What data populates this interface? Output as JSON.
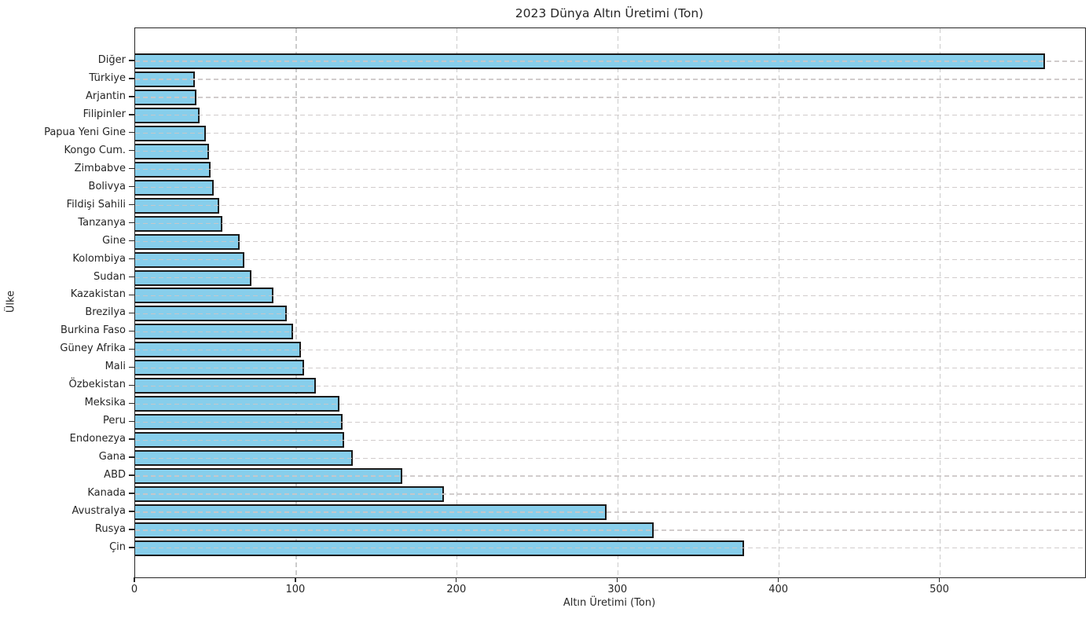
{
  "chart_data": {
    "type": "bar",
    "orientation": "horizontal",
    "title": "2023 Dünya Altın Üretimi (Ton)",
    "xlabel": "Altın Üretimi (Ton)",
    "ylabel": "Ülke",
    "categories_top_to_bottom": [
      "Diğer",
      "Türkiye",
      "Arjantin",
      "Filipinler",
      "Papua Yeni Gine",
      "Kongo Cum.",
      "Zimbabve",
      "Bolivya",
      "Fildişi Sahili",
      "Tanzanya",
      "Gine",
      "Kolombiya",
      "Sudan",
      "Kazakistan",
      "Brezilya",
      "Burkina Faso",
      "Güney Afrika",
      "Mali",
      "Özbekistan",
      "Meksika",
      "Peru",
      "Endonezya",
      "Gana",
      "ABD",
      "Kanada",
      "Avustralya",
      "Rusya",
      "Çin"
    ],
    "values": [
      565,
      37,
      38,
      40,
      44,
      46,
      47,
      49,
      52,
      54,
      65,
      68,
      72,
      86,
      94,
      98,
      103,
      105,
      112,
      127,
      129,
      130,
      135,
      166,
      192,
      293,
      322,
      378
    ],
    "xlim": [
      0,
      590
    ],
    "xticks": [
      0,
      100,
      200,
      300,
      400,
      500
    ],
    "grid_style": "dashed",
    "legend": "none",
    "bar_color": "#87CEEB",
    "bar_edge_color": "#1a1a1a",
    "grid_color": "#cccccc",
    "text_color": "#262626"
  }
}
